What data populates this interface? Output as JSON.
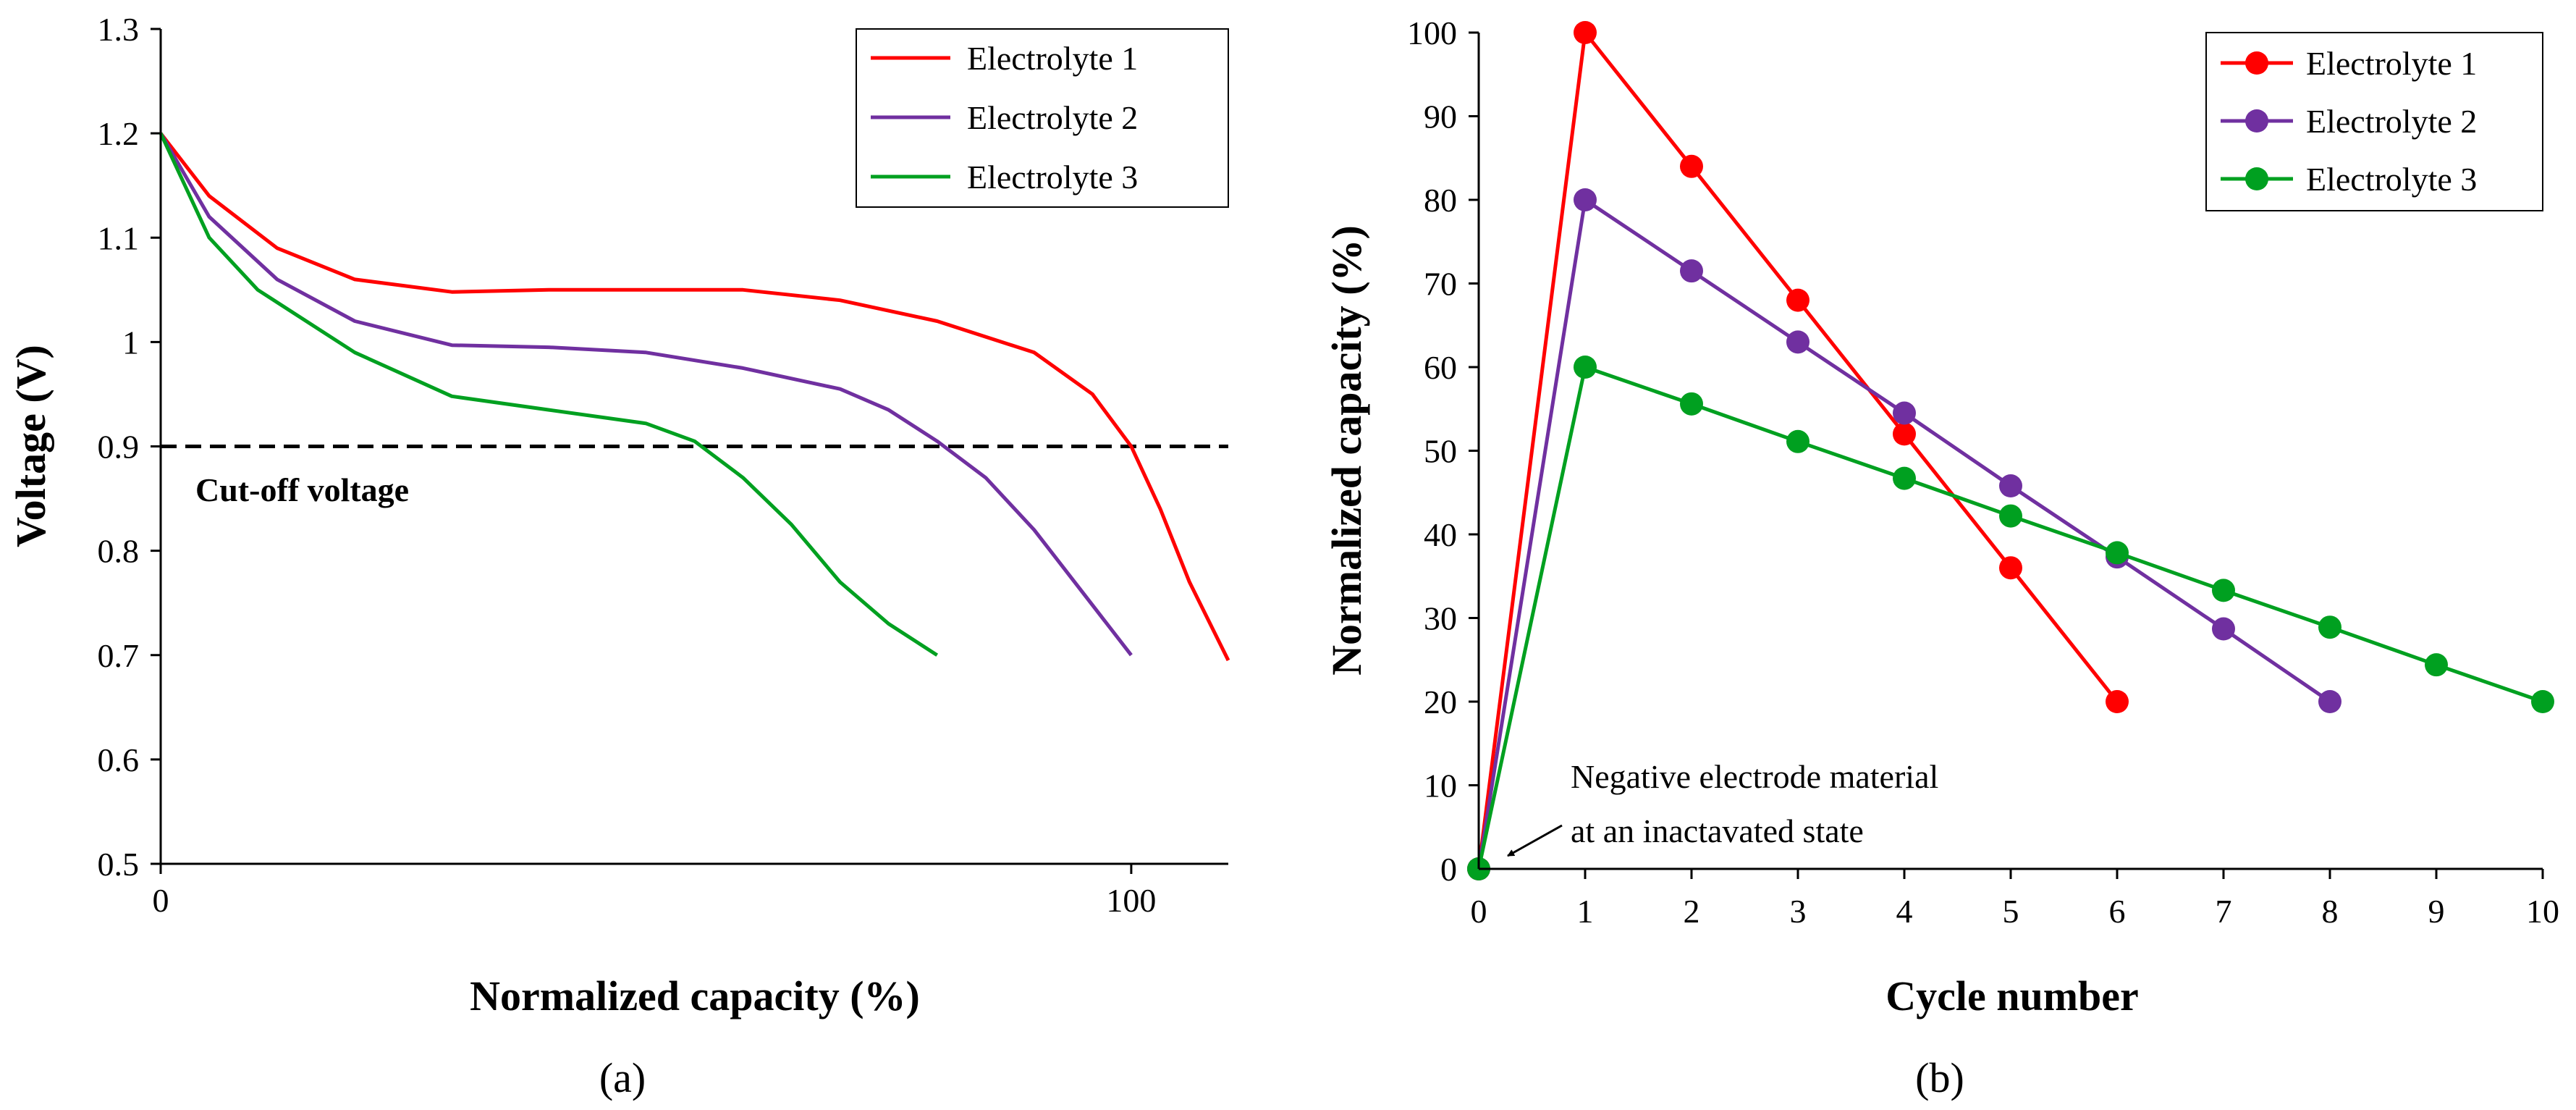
{
  "chart_data": [
    {
      "id": "a",
      "type": "line",
      "panel_label": "(a)",
      "xlabel": "Normalized capacity (%)",
      "ylabel": "Voltage (V)",
      "xlim": [
        0,
        110
      ],
      "ylim": [
        0.5,
        1.3
      ],
      "xticks": [
        0,
        100
      ],
      "xtick_labels": [
        "0",
        "100"
      ],
      "yticks": [
        0.5,
        0.6,
        0.7,
        0.8,
        0.9,
        1.0,
        1.1,
        1.2,
        1.3
      ],
      "ytick_labels": [
        "0.5",
        "0.6",
        "0.7",
        "0.8",
        "0.9",
        "1",
        "1.1",
        "1.2",
        "1.3"
      ],
      "grid": false,
      "legend_position": "top-right",
      "series": [
        {
          "name": "Electrolyte 1",
          "color": "#ff0000",
          "x": [
            0,
            5,
            12,
            20,
            30,
            40,
            50,
            60,
            70,
            80,
            90,
            96,
            100,
            103,
            106,
            110
          ],
          "y": [
            1.2,
            1.14,
            1.09,
            1.06,
            1.048,
            1.05,
            1.05,
            1.05,
            1.04,
            1.02,
            0.99,
            0.95,
            0.9,
            0.84,
            0.77,
            0.695
          ]
        },
        {
          "name": "Electrolyte 2",
          "color": "#7030a0",
          "x": [
            0,
            5,
            12,
            20,
            30,
            40,
            50,
            60,
            70,
            75,
            80,
            85,
            90,
            95,
            100
          ],
          "y": [
            1.2,
            1.12,
            1.06,
            1.02,
            0.997,
            0.995,
            0.99,
            0.975,
            0.955,
            0.935,
            0.905,
            0.87,
            0.82,
            0.76,
            0.7
          ]
        },
        {
          "name": "Electrolyte 3",
          "color": "#00a020",
          "x": [
            0,
            5,
            10,
            20,
            30,
            40,
            50,
            55,
            60,
            65,
            70,
            75,
            80
          ],
          "y": [
            1.2,
            1.1,
            1.05,
            0.99,
            0.948,
            0.935,
            0.922,
            0.905,
            0.87,
            0.825,
            0.77,
            0.73,
            0.7
          ]
        }
      ],
      "reference_line": {
        "y": 0.9,
        "style": "dashed",
        "label": "Cut-off voltage"
      }
    },
    {
      "id": "b",
      "type": "line",
      "panel_label": "(b)",
      "xlabel": "Cycle number",
      "ylabel": "Normalized capacity (%)",
      "xlim": [
        0,
        10
      ],
      "ylim": [
        0,
        100
      ],
      "xticks": [
        0,
        1,
        2,
        3,
        4,
        5,
        6,
        7,
        8,
        9,
        10
      ],
      "xtick_labels": [
        "0",
        "1",
        "2",
        "3",
        "4",
        "5",
        "6",
        "7",
        "8",
        "9",
        "10"
      ],
      "yticks": [
        0,
        10,
        20,
        30,
        40,
        50,
        60,
        70,
        80,
        90,
        100
      ],
      "ytick_labels": [
        "0",
        "10",
        "20",
        "30",
        "40",
        "50",
        "60",
        "70",
        "80",
        "90",
        "100"
      ],
      "grid": false,
      "legend_position": "top-right",
      "series": [
        {
          "name": "Electrolyte 1",
          "color": "#ff0000",
          "x": [
            0,
            1,
            2,
            3,
            4,
            5,
            6
          ],
          "y": [
            0,
            100,
            84,
            68,
            52,
            36,
            20
          ]
        },
        {
          "name": "Electrolyte 2",
          "color": "#7030a0",
          "x": [
            0,
            1,
            2,
            3,
            4,
            5,
            6,
            7,
            8
          ],
          "y": [
            0,
            80,
            71.5,
            63,
            54.5,
            45.8,
            37.3,
            28.7,
            20
          ]
        },
        {
          "name": "Electrolyte 3",
          "color": "#00a020",
          "x": [
            0,
            1,
            2,
            3,
            4,
            5,
            6,
            7,
            8,
            9,
            10
          ],
          "y": [
            0,
            60,
            55.6,
            51.1,
            46.7,
            42.2,
            37.8,
            33.3,
            28.9,
            24.4,
            20
          ]
        }
      ],
      "annotation": {
        "line1": "Negative electrode material",
        "line2": "at an inactavated state",
        "points_to": {
          "x": 0,
          "y": 0
        }
      }
    }
  ]
}
